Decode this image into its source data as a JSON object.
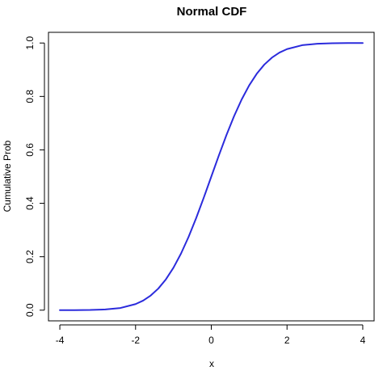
{
  "chart_data": {
    "type": "line",
    "title": "Normal CDF",
    "xlabel": "x",
    "ylabel": "Cumulative Prob",
    "xlim": [
      -4.3,
      4.3
    ],
    "ylim": [
      -0.04,
      1.04
    ],
    "x_ticks": [
      -4,
      -2,
      0,
      2,
      4
    ],
    "x_tick_labels": [
      "-4",
      "-2",
      "0",
      "2",
      "4"
    ],
    "y_ticks": [
      0.0,
      0.2,
      0.4,
      0.6,
      0.8,
      1.0
    ],
    "y_tick_labels": [
      "0.0",
      "0.2",
      "0.4",
      "0.6",
      "0.8",
      "1.0"
    ],
    "grid": false,
    "legend": "none",
    "series": [
      {
        "color": "#2b2bdc",
        "x": [
          -4.0,
          -3.6,
          -3.2,
          -2.8,
          -2.4,
          -2.0,
          -1.8,
          -1.6,
          -1.4,
          -1.2,
          -1.0,
          -0.8,
          -0.6,
          -0.4,
          -0.2,
          0.0,
          0.2,
          0.4,
          0.6,
          0.8,
          1.0,
          1.2,
          1.4,
          1.6,
          1.8,
          2.0,
          2.4,
          2.8,
          3.2,
          3.6,
          4.0
        ],
        "values": [
          0.0,
          0.0002,
          0.0007,
          0.0026,
          0.0082,
          0.0228,
          0.0359,
          0.0548,
          0.0808,
          0.1151,
          0.1587,
          0.2119,
          0.2743,
          0.3446,
          0.4207,
          0.5,
          0.5793,
          0.6554,
          0.7257,
          0.7881,
          0.8413,
          0.8849,
          0.9192,
          0.9452,
          0.9641,
          0.9772,
          0.9918,
          0.9974,
          0.9993,
          0.9998,
          1.0
        ]
      }
    ]
  }
}
